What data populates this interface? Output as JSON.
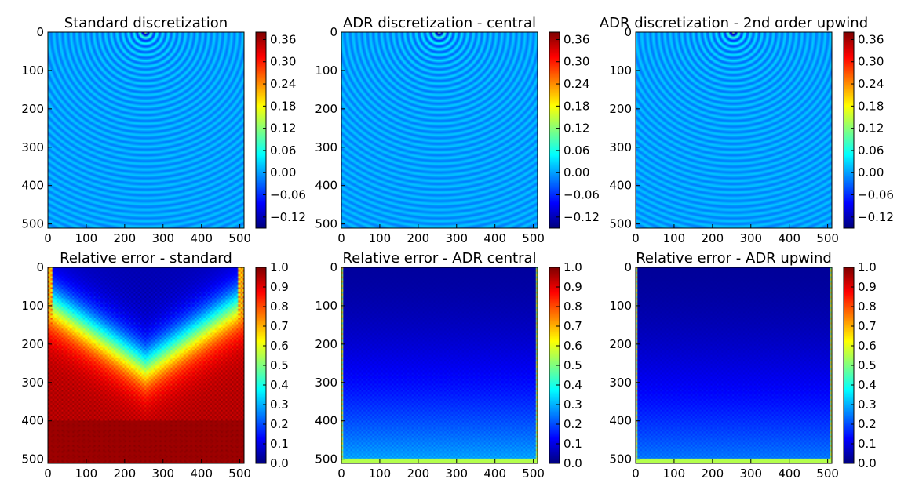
{
  "chart_data": [
    {
      "type": "heatmap",
      "title": "Standard discretization",
      "pattern": "rings",
      "x_ticks": [
        "0",
        "100",
        "200",
        "300",
        "400",
        "500"
      ],
      "y_ticks": [
        "0",
        "100",
        "200",
        "300",
        "400",
        "500"
      ],
      "xlim": [
        0,
        511
      ],
      "ylim": [
        511,
        0
      ],
      "colorbar": {
        "range": [
          -0.15,
          0.38
        ],
        "ticks": [
          "0.36",
          "0.30",
          "0.24",
          "0.18",
          "0.12",
          "0.06",
          "0.00",
          "−0.06",
          "−0.12"
        ]
      },
      "colormap": "jet"
    },
    {
      "type": "heatmap",
      "title": "ADR discretization - central",
      "pattern": "rings",
      "x_ticks": [
        "0",
        "100",
        "200",
        "300",
        "400",
        "500"
      ],
      "y_ticks": [
        "0",
        "100",
        "200",
        "300",
        "400",
        "500"
      ],
      "xlim": [
        0,
        511
      ],
      "ylim": [
        511,
        0
      ],
      "colorbar": {
        "range": [
          -0.15,
          0.38
        ],
        "ticks": [
          "0.36",
          "0.30",
          "0.24",
          "0.18",
          "0.12",
          "0.06",
          "0.00",
          "−0.06",
          "−0.12"
        ]
      },
      "colormap": "jet"
    },
    {
      "type": "heatmap",
      "title": "ADR discretization - 2nd order upwind",
      "pattern": "rings",
      "x_ticks": [
        "0",
        "100",
        "200",
        "300",
        "400",
        "500"
      ],
      "y_ticks": [
        "0",
        "100",
        "200",
        "300",
        "400",
        "500"
      ],
      "xlim": [
        0,
        511
      ],
      "ylim": [
        511,
        0
      ],
      "colorbar": {
        "range": [
          -0.15,
          0.38
        ],
        "ticks": [
          "0.36",
          "0.30",
          "0.24",
          "0.18",
          "0.12",
          "0.06",
          "0.00",
          "−0.06",
          "−0.12"
        ]
      },
      "colormap": "jet"
    },
    {
      "type": "heatmap",
      "title": "Relative error - standard",
      "pattern": "error-standard",
      "x_ticks": [
        "0",
        "100",
        "200",
        "300",
        "400",
        "500"
      ],
      "y_ticks": [
        "0",
        "100",
        "200",
        "300",
        "400",
        "500"
      ],
      "xlim": [
        0,
        511
      ],
      "ylim": [
        511,
        0
      ],
      "colorbar": {
        "range": [
          0.0,
          1.0
        ],
        "ticks": [
          "1.0",
          "0.9",
          "0.8",
          "0.7",
          "0.6",
          "0.5",
          "0.4",
          "0.3",
          "0.2",
          "0.1",
          "0.0"
        ]
      },
      "colormap": "jet"
    },
    {
      "type": "heatmap",
      "title": "Relative error - ADR central",
      "pattern": "error-adr-central",
      "x_ticks": [
        "0",
        "100",
        "200",
        "300",
        "400",
        "500"
      ],
      "y_ticks": [
        "0",
        "100",
        "200",
        "300",
        "400",
        "500"
      ],
      "xlim": [
        0,
        511
      ],
      "ylim": [
        511,
        0
      ],
      "colorbar": {
        "range": [
          0.0,
          1.0
        ],
        "ticks": [
          "1.0",
          "0.9",
          "0.8",
          "0.7",
          "0.6",
          "0.5",
          "0.4",
          "0.3",
          "0.2",
          "0.1",
          "0.0"
        ]
      },
      "colormap": "jet"
    },
    {
      "type": "heatmap",
      "title": "Relative error - ADR upwind",
      "pattern": "error-adr-upwind",
      "x_ticks": [
        "0",
        "100",
        "200",
        "300",
        "400",
        "500"
      ],
      "y_ticks": [
        "0",
        "100",
        "200",
        "300",
        "400",
        "500"
      ],
      "xlim": [
        0,
        511
      ],
      "ylim": [
        511,
        0
      ],
      "colorbar": {
        "range": [
          0.0,
          1.0
        ],
        "ticks": [
          "1.0",
          "0.9",
          "0.8",
          "0.7",
          "0.6",
          "0.5",
          "0.4",
          "0.3",
          "0.2",
          "0.1",
          "0.0"
        ]
      },
      "colormap": "jet"
    }
  ]
}
